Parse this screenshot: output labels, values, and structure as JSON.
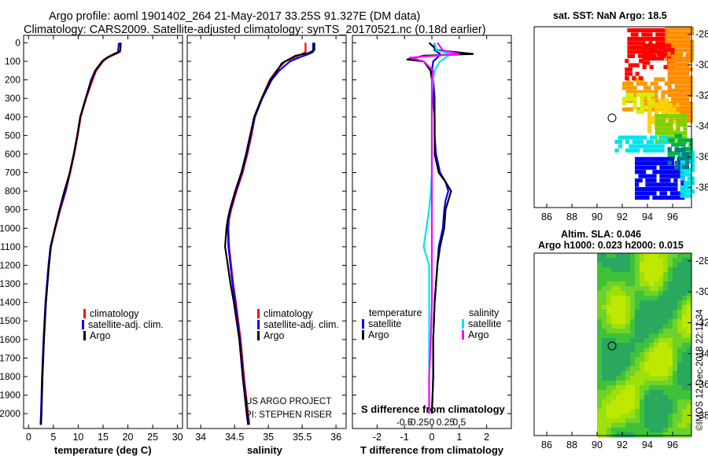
{
  "header": {
    "line1": "Argo profile: aoml 1901402_264 21-May-2017 33.25S 91.327E (DM data)",
    "line2": "Climatology: CARS2009. Satellite-adjusted climatology: synTS_20170521.nc (0.18d earlier)"
  },
  "colors": {
    "climatology": "#ff0000",
    "satellite": "#0000ff",
    "argo": "#000000",
    "sat_salinity": "#00e5ee",
    "argo_salinity_diff": "#ff00ff"
  },
  "depth_ticks": [
    0,
    100,
    200,
    300,
    400,
    500,
    600,
    700,
    800,
    900,
    1000,
    1100,
    1200,
    1300,
    1400,
    1500,
    1600,
    1700,
    1800,
    1900,
    2000
  ],
  "temperature_panel": {
    "xlabel": "temperature (deg C)",
    "xticks": [
      0,
      5,
      10,
      15,
      20,
      25,
      30
    ],
    "xlim": [
      -1,
      31
    ],
    "legend": [
      "climatology",
      "satellite-adj. clim.",
      "Argo"
    ]
  },
  "salinity_panel": {
    "xlabel": "salinity",
    "xticks": [
      "34",
      "34.5",
      "35",
      "35.5",
      "36"
    ],
    "xlim": [
      33.8,
      36.15
    ],
    "legend": [
      "climatology",
      "satellite-adj. clim.",
      "Argo"
    ],
    "credit1": "US ARGO PROJECT",
    "credit2": "PI: STEPHEN RISER"
  },
  "difference_panel": {
    "xlabel": "T difference from climatology",
    "top_label": "S difference from climatology",
    "t_ticks": [
      "-2",
      "-1",
      "0",
      "1",
      "2"
    ],
    "t_lim": [
      -2.9,
      2.9
    ],
    "s_ticks": [
      "-0.5",
      "-0.25",
      "0",
      "0.25",
      "0.5"
    ],
    "legend_temperature_title": "temperature",
    "legend_salinity_title": "salinity",
    "legend_satellite": "satellite",
    "legend_argo": "Argo"
  },
  "map_top": {
    "title": "sat. SST: NaN Argo: 18.5",
    "lat_ticks": [
      "-28",
      "-30",
      "-32",
      "-34",
      "-36",
      "-38"
    ],
    "lon_ticks": [
      "86",
      "88",
      "90",
      "92",
      "94",
      "96"
    ]
  },
  "map_bottom": {
    "title1": "Altim. SLA: 0.046",
    "title2": "Argo h1000: 0.023 h2000: 0.015",
    "lat_ticks": [
      "-28",
      "-30",
      "-32",
      "-34",
      "-36",
      "-38"
    ],
    "lon_ticks": [
      "86",
      "88",
      "90",
      "92",
      "94",
      "96"
    ]
  },
  "footer_credit": "©IMOS 12-Dec-2018 22:11:34",
  "chart_data": [
    {
      "type": "line",
      "title": "",
      "xlabel": "temperature (deg C)",
      "ylabel": "",
      "xlim": [
        -1,
        31
      ],
      "ylim": [
        2080,
        -40
      ],
      "series": [
        {
          "name": "climatology",
          "color": "#ff0000",
          "depth": [
            0,
            50,
            60,
            80,
            100,
            150,
            200,
            300,
            400,
            500,
            600,
            700,
            800,
            900,
            1000,
            1100,
            1200,
            1400,
            1600,
            1800,
            2000,
            2060
          ],
          "value": [
            18.6,
            18.4,
            17.5,
            16.0,
            15.0,
            13.6,
            12.9,
            11.6,
            10.5,
            9.9,
            9.2,
            8.4,
            7.5,
            6.4,
            5.4,
            4.5,
            4.1,
            3.5,
            3.1,
            2.8,
            2.6,
            2.5
          ]
        },
        {
          "name": "satellite-adj. clim.",
          "color": "#0000ff",
          "depth": [
            0,
            50,
            60,
            80,
            100,
            150,
            200,
            300,
            400,
            500,
            600,
            700,
            800,
            900,
            1000,
            1100,
            1200,
            1400,
            1600,
            1800,
            2000,
            2060
          ],
          "value": [
            18.2,
            18.0,
            17.2,
            15.8,
            14.8,
            13.4,
            12.6,
            11.5,
            10.4,
            9.8,
            9.1,
            8.3,
            7.4,
            6.3,
            5.3,
            4.4,
            4.0,
            3.4,
            3.0,
            2.7,
            2.5,
            2.4
          ]
        },
        {
          "name": "Argo",
          "color": "#000000",
          "depth": [
            0,
            40,
            55,
            70,
            90,
            110,
            150,
            200,
            300,
            400,
            500,
            600,
            700,
            800,
            900,
            1000,
            1100,
            1200,
            1400,
            1600,
            1800,
            2000,
            2060
          ],
          "value": [
            18.5,
            18.5,
            17.8,
            16.5,
            15.2,
            14.6,
            13.5,
            12.7,
            11.5,
            10.4,
            9.8,
            9.1,
            8.3,
            7.2,
            6.2,
            5.3,
            4.5,
            4.1,
            3.5,
            3.1,
            2.8,
            2.6,
            2.5
          ]
        }
      ]
    },
    {
      "type": "line",
      "title": "",
      "xlabel": "salinity",
      "ylabel": "",
      "xlim": [
        33.8,
        36.15
      ],
      "ylim": [
        2080,
        -40
      ],
      "series": [
        {
          "name": "climatology",
          "color": "#ff0000",
          "depth": [
            0,
            50,
            60,
            80,
            100,
            150,
            200,
            300,
            400,
            500,
            600,
            700,
            800,
            900,
            950,
            1000,
            1100,
            1200,
            1300,
            1400,
            1600,
            1800,
            2000,
            2060
          ],
          "value": [
            35.55,
            35.55,
            35.5,
            35.38,
            35.25,
            35.12,
            35.02,
            34.9,
            34.8,
            34.75,
            34.69,
            34.62,
            34.53,
            34.45,
            34.42,
            34.41,
            34.42,
            34.45,
            34.48,
            34.52,
            34.59,
            34.64,
            34.7,
            34.72
          ]
        },
        {
          "name": "satellite-adj. clim.",
          "color": "#0000ff",
          "depth": [
            0,
            50,
            60,
            80,
            100,
            150,
            200,
            300,
            400,
            500,
            600,
            700,
            800,
            900,
            950,
            1000,
            1100,
            1200,
            1300,
            1400,
            1600,
            1800,
            2000,
            2060
          ],
          "value": [
            35.66,
            35.66,
            35.6,
            35.45,
            35.32,
            35.16,
            35.05,
            34.91,
            34.8,
            34.74,
            34.68,
            34.61,
            34.52,
            34.44,
            34.41,
            34.4,
            34.41,
            34.44,
            34.47,
            34.51,
            34.58,
            34.63,
            34.69,
            34.71
          ]
        },
        {
          "name": "Argo",
          "color": "#000000",
          "depth": [
            0,
            40,
            55,
            70,
            90,
            110,
            150,
            200,
            300,
            400,
            500,
            600,
            700,
            800,
            900,
            950,
            1000,
            1100,
            1200,
            1300,
            1400,
            1600,
            1800,
            2000,
            2060
          ],
          "value": [
            35.68,
            35.68,
            35.6,
            35.4,
            35.3,
            35.2,
            35.13,
            35.03,
            34.9,
            34.79,
            34.73,
            34.67,
            34.6,
            34.51,
            34.43,
            34.4,
            34.38,
            34.36,
            34.4,
            34.44,
            34.49,
            34.57,
            34.62,
            34.68,
            34.7
          ]
        }
      ]
    },
    {
      "type": "line",
      "title": "",
      "xlabel": "T difference from climatology",
      "ylabel": "",
      "xlim": [
        -2.9,
        2.9
      ],
      "ylim": [
        2080,
        -40
      ],
      "series": [
        {
          "name": "temperature satellite",
          "color": "#0000ff",
          "depth": [
            0,
            40,
            60,
            80,
            100,
            150,
            200,
            300,
            400,
            500,
            600,
            700,
            750,
            800,
            850,
            900,
            1000,
            1100,
            1200,
            1400,
            1600,
            1800,
            2000
          ],
          "value": [
            0.1,
            0.1,
            0.3,
            0.2,
            0.05,
            0.0,
            0.05,
            0.1,
            0.1,
            0.1,
            0.15,
            0.3,
            0.5,
            0.6,
            0.5,
            0.45,
            0.4,
            0.25,
            0.2,
            0.1,
            0.05,
            0.05,
            0.0
          ]
        },
        {
          "name": "temperature Argo",
          "color": "#000000",
          "depth": [
            0,
            40,
            60,
            70,
            80,
            90,
            100,
            150,
            200,
            300,
            400,
            500,
            600,
            700,
            750,
            800,
            850,
            900,
            1000,
            1100,
            1200,
            1400,
            1600,
            1800,
            2000
          ],
          "value": [
            -0.1,
            0.2,
            1.5,
            -0.3,
            -0.6,
            -0.9,
            -0.3,
            -0.05,
            0.0,
            0.05,
            0.1,
            0.1,
            0.1,
            0.25,
            0.5,
            0.7,
            0.6,
            0.5,
            0.45,
            0.3,
            0.2,
            0.1,
            0.05,
            0.05,
            0.0
          ]
        },
        {
          "name": "salinity satellite",
          "color": "#00e5ee",
          "depth": [
            0,
            40,
            60,
            80,
            100,
            150,
            200,
            300,
            400,
            500,
            600,
            700,
            800,
            900,
            1000,
            1100,
            1200,
            1400,
            1600,
            1800,
            2000
          ],
          "value": [
            0.05,
            0.08,
            0.35,
            0.25,
            0.15,
            0.05,
            0.02,
            0.0,
            0.0,
            0.0,
            0.0,
            0.0,
            -0.02,
            -0.05,
            -0.1,
            -0.15,
            -0.05,
            -0.05,
            -0.05,
            -0.05,
            -0.05
          ]
        },
        {
          "name": "salinity Argo",
          "color": "#ff00ff",
          "depth": [
            0,
            40,
            60,
            80,
            100,
            150,
            200,
            300,
            400,
            500,
            600,
            700,
            800,
            900,
            1000,
            1100,
            1200,
            1400,
            1600,
            1800,
            2000
          ],
          "value": [
            0.1,
            0.2,
            0.5,
            -0.4,
            -0.15,
            0.02,
            0.0,
            0.0,
            0.0,
            0.0,
            0.0,
            0.0,
            0.0,
            0.0,
            0.0,
            0.0,
            0.0,
            0.0,
            -0.02,
            -0.05,
            -0.05
          ]
        }
      ]
    },
    {
      "type": "heatmap",
      "title": "sat. SST: NaN Argo: 18.5",
      "xlabel": "",
      "ylabel": "",
      "xlim": [
        85,
        97.5
      ],
      "ylim": [
        -39.3,
        -27.5
      ],
      "argo_position": {
        "lon": 91.3,
        "lat": -33.3
      }
    },
    {
      "type": "heatmap",
      "title": "Altim. SLA: 0.046",
      "xlabel": "",
      "ylabel": "",
      "xlim": [
        85,
        97.5
      ],
      "ylim": [
        -39.3,
        -27.5
      ],
      "argo_position": {
        "lon": 91.3,
        "lat": -33.3
      }
    }
  ]
}
